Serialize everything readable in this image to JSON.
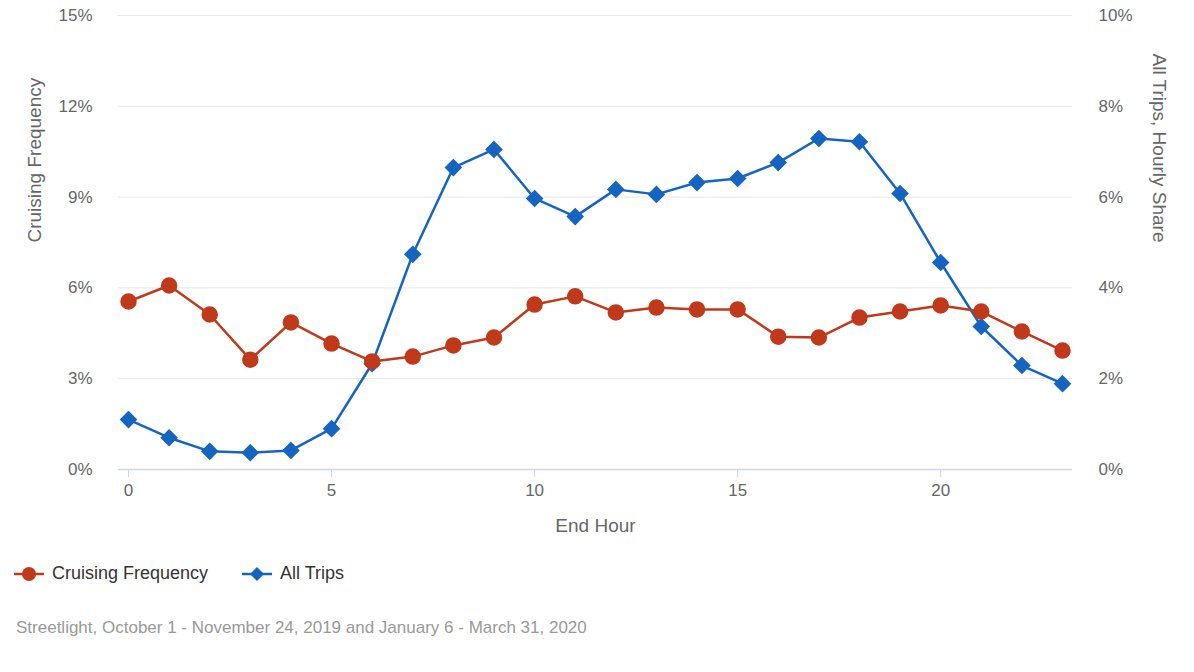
{
  "chart_data": {
    "type": "line",
    "x_label": "End Hour",
    "y_label": "Cruising Frequency",
    "y2_label": "All Trips, Hourly Share",
    "caption": "Streetlight, October 1 - November 24, 2019 and January 6 - March 31, 2020",
    "x": [
      0,
      1,
      2,
      3,
      4,
      5,
      6,
      7,
      8,
      9,
      10,
      11,
      12,
      13,
      14,
      15,
      16,
      17,
      18,
      19,
      20,
      21,
      22,
      23
    ],
    "xlim": [
      0,
      23
    ],
    "xticks": [
      0,
      5,
      10,
      15,
      20
    ],
    "ylim": [
      0,
      15
    ],
    "yticks": [
      {
        "value": 0,
        "label": "0%"
      },
      {
        "value": 3,
        "label": "3%"
      },
      {
        "value": 6,
        "label": "6%"
      },
      {
        "value": 9,
        "label": "9%"
      },
      {
        "value": 12,
        "label": "12%"
      },
      {
        "value": 15,
        "label": "15%"
      }
    ],
    "y2lim": [
      0,
      10
    ],
    "y2ticks": [
      {
        "value": 0,
        "label": "0%"
      },
      {
        "value": 2,
        "label": "2%"
      },
      {
        "value": 4,
        "label": "4%"
      },
      {
        "value": 6,
        "label": "6%"
      },
      {
        "value": 8,
        "label": "8%"
      },
      {
        "value": 10,
        "label": "10%"
      }
    ],
    "grid": true,
    "legend": "bottom-left",
    "series": [
      {
        "name": "Cruising Frequency",
        "color": "#c0391b",
        "marker": "circle",
        "axis": "y",
        "values": [
          5.55,
          6.08,
          5.12,
          3.63,
          4.86,
          4.16,
          3.57,
          3.73,
          4.1,
          4.36,
          5.45,
          5.72,
          5.19,
          5.35,
          5.29,
          5.29,
          4.39,
          4.36,
          5.02,
          5.22,
          5.42,
          5.22,
          4.56,
          3.93
        ]
      },
      {
        "name": "All Trips",
        "color": "#1565c0",
        "marker": "diamond",
        "axis": "y2",
        "values": [
          1.1,
          0.7,
          0.4,
          0.37,
          0.42,
          0.9,
          2.33,
          4.74,
          6.65,
          7.05,
          5.97,
          5.57,
          6.17,
          6.06,
          6.32,
          6.41,
          6.76,
          7.29,
          7.22,
          6.08,
          4.56,
          3.15,
          2.29,
          1.89
        ]
      }
    ]
  }
}
